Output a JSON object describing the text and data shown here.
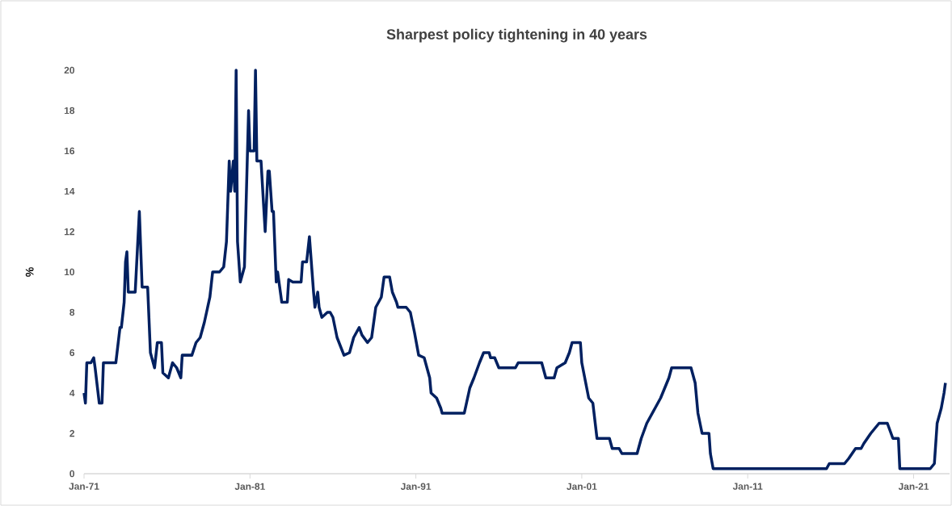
{
  "chart_data": {
    "type": "line",
    "title": "Sharpest policy tightening in 40 years",
    "ylabel": "%",
    "xlim": [
      "1971-01",
      "2023-03"
    ],
    "xticks": [
      {
        "value": "1971-01",
        "label": "Jan-71"
      },
      {
        "value": "1981-01",
        "label": "Jan-81"
      },
      {
        "value": "1991-01",
        "label": "Jan-91"
      },
      {
        "value": "2001-01",
        "label": "Jan-01"
      },
      {
        "value": "2011-01",
        "label": "Jan-11"
      },
      {
        "value": "2021-01",
        "label": "Jan-21"
      }
    ],
    "ylim": [
      0,
      20
    ],
    "yticks": [
      0,
      2,
      4,
      6,
      8,
      10,
      12,
      14,
      16,
      18,
      20
    ],
    "grid": false,
    "legend": false,
    "marker": "none",
    "line_style": "solid",
    "x": [
      "1971-01",
      "1971-02",
      "1971-03",
      "1971-06",
      "1971-08",
      "1971-09",
      "1971-12",
      "1972-02",
      "1972-03",
      "1972-12",
      "1973-03",
      "1973-04",
      "1973-06",
      "1973-07",
      "1973-08",
      "1973-09",
      "1974-02",
      "1974-05",
      "1974-07",
      "1974-11",
      "1975-01",
      "1975-04",
      "1975-06",
      "1975-09",
      "1975-10",
      "1976-02",
      "1976-05",
      "1976-08",
      "1976-11",
      "1976-12",
      "1977-07",
      "1977-10",
      "1978-01",
      "1978-04",
      "1978-08",
      "1978-10",
      "1979-03",
      "1979-06",
      "1979-08",
      "1979-10",
      "1979-11",
      "1980-01",
      "1980-02",
      "1980-03",
      "1980-04",
      "1980-06",
      "1980-09",
      "1980-12",
      "1981-01",
      "1981-04",
      "1981-05",
      "1981-06",
      "1981-09",
      "1981-12",
      "1982-02",
      "1982-03",
      "1982-05",
      "1982-06",
      "1982-08",
      "1982-09",
      "1982-12",
      "1983-04",
      "1983-05",
      "1983-08",
      "1984-02",
      "1984-03",
      "1984-06",
      "1984-08",
      "1984-11",
      "1984-12",
      "1985-02",
      "1985-03",
      "1985-05",
      "1985-09",
      "1985-11",
      "1986-01",
      "1986-04",
      "1986-09",
      "1987-01",
      "1987-04",
      "1987-08",
      "1987-10",
      "1988-02",
      "1988-05",
      "1988-08",
      "1988-12",
      "1989-02",
      "1989-06",
      "1989-08",
      "1989-11",
      "1989-12",
      "1990-06",
      "1990-09",
      "1990-12",
      "1991-03",
      "1991-07",
      "1991-11",
      "1991-12",
      "1992-04",
      "1992-07",
      "1992-08",
      "1993-12",
      "1994-04",
      "1994-07",
      "1994-11",
      "1995-02",
      "1995-06",
      "1995-07",
      "1995-10",
      "1996-01",
      "1997-01",
      "1997-03",
      "1998-08",
      "1998-11",
      "1999-05",
      "1999-07",
      "2000-01",
      "2000-04",
      "2000-06",
      "2000-12",
      "2001-01",
      "2001-06",
      "2001-09",
      "2001-12",
      "2002-09",
      "2002-11",
      "2003-04",
      "2003-06",
      "2004-05",
      "2004-08",
      "2004-12",
      "2005-06",
      "2005-10",
      "2006-04",
      "2006-06",
      "2007-08",
      "2007-11",
      "2008-01",
      "2008-04",
      "2008-09",
      "2008-10",
      "2008-12",
      "2015-10",
      "2015-12",
      "2016-11",
      "2017-02",
      "2017-07",
      "2017-11",
      "2018-01",
      "2018-06",
      "2018-09",
      "2018-12",
      "2019-06",
      "2019-10",
      "2020-02",
      "2020-03",
      "2022-01",
      "2022-04",
      "2022-06",
      "2022-09",
      "2022-11",
      "2022-12"
    ],
    "series": [
      {
        "color": "#002060",
        "values": [
          4.0,
          3.5,
          5.5,
          5.5,
          5.75,
          5.25,
          3.5,
          3.5,
          5.5,
          5.5,
          7.25,
          7.25,
          8.5,
          10.5,
          11.0,
          9.0,
          9.0,
          13.0,
          9.25,
          9.25,
          6.0,
          5.25,
          6.5,
          6.5,
          5.0,
          4.75,
          5.5,
          5.25,
          4.75,
          5.875,
          5.875,
          6.5,
          6.75,
          7.5,
          8.75,
          10.0,
          10.0,
          10.25,
          11.5,
          15.5,
          14.0,
          15.5,
          14.0,
          20.0,
          11.5,
          9.5,
          10.25,
          18.0,
          16.0,
          16.0,
          20.0,
          15.5,
          15.5,
          12.0,
          15.0,
          15.0,
          13.0,
          13.0,
          9.5,
          10.0,
          8.5,
          8.5,
          9.625,
          9.5,
          9.5,
          10.5,
          10.5,
          11.75,
          9.0,
          8.25,
          9.0,
          8.25,
          7.75,
          8.0,
          8.0,
          7.75,
          6.75,
          5.875,
          6.0,
          6.75,
          7.25,
          6.875,
          6.5,
          6.75,
          8.25,
          8.75,
          9.75,
          9.75,
          9.0,
          8.5,
          8.25,
          8.25,
          8.0,
          7.0,
          5.875,
          5.75,
          4.75,
          4.0,
          3.75,
          3.25,
          3.0,
          3.0,
          4.25,
          4.75,
          5.5,
          6.0,
          6.0,
          5.75,
          5.75,
          5.25,
          5.25,
          5.5,
          5.5,
          4.75,
          4.75,
          5.25,
          5.5,
          6.0,
          6.5,
          6.5,
          5.5,
          3.75,
          3.5,
          1.75,
          1.75,
          1.25,
          1.25,
          1.0,
          1.0,
          1.75,
          2.5,
          3.25,
          3.75,
          4.75,
          5.25,
          5.25,
          4.5,
          3.0,
          2.0,
          2.0,
          1.0,
          0.25,
          0.25,
          0.5,
          0.5,
          0.75,
          1.25,
          1.25,
          1.5,
          2.0,
          2.25,
          2.5,
          2.5,
          1.75,
          1.75,
          0.25,
          0.25,
          0.5,
          2.5,
          3.25,
          4.0,
          4.5
        ]
      }
    ]
  }
}
